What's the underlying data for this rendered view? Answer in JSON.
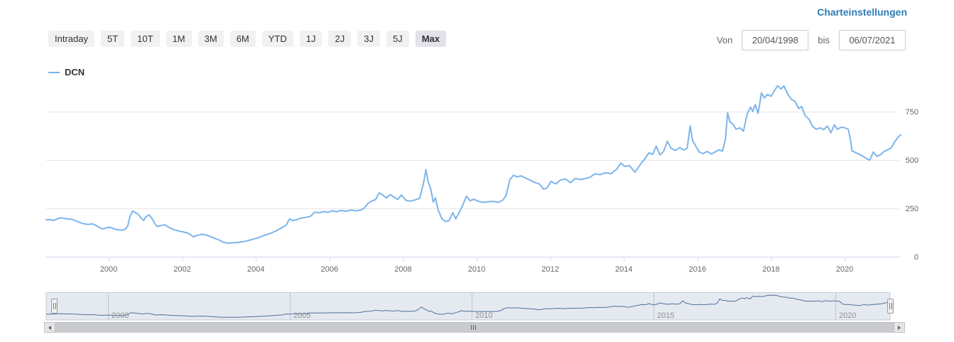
{
  "header": {
    "settings_label": "Charteinstellungen"
  },
  "toolbar": {
    "ranges": [
      {
        "label": "Intraday",
        "selected": false
      },
      {
        "label": "5T",
        "selected": false
      },
      {
        "label": "10T",
        "selected": false
      },
      {
        "label": "1M",
        "selected": false
      },
      {
        "label": "3M",
        "selected": false
      },
      {
        "label": "6M",
        "selected": false
      },
      {
        "label": "YTD",
        "selected": false
      },
      {
        "label": "1J",
        "selected": false
      },
      {
        "label": "2J",
        "selected": false
      },
      {
        "label": "3J",
        "selected": false
      },
      {
        "label": "5J",
        "selected": false
      },
      {
        "label": "Max",
        "selected": true
      }
    ],
    "from_label": "Von",
    "from_value": "20/04/1998",
    "to_label": "bis",
    "to_value": "06/07/2021"
  },
  "legend": {
    "series_label": "DCN"
  },
  "colors": {
    "link": "#2e7eb4",
    "series": "#7cb5ec",
    "navigator_line": "#52709b",
    "navigator_fill": "#e5eaf1",
    "grid": "#e6e6e6",
    "axis_line": "#ccd6eb",
    "tick_label": "#666666",
    "nav_label": "#8f8f8f",
    "nav_grid": "#bcc5d0",
    "nav_border": "#c6ccd3"
  },
  "chart_data": {
    "type": "line",
    "title": "",
    "xlabel": "",
    "ylabel": "",
    "grid": true,
    "legend_position": "top-left",
    "xlim": [
      1998.3,
      2021.55
    ],
    "ylim": [
      0,
      900
    ],
    "x_ticks": [
      2000,
      2002,
      2004,
      2006,
      2008,
      2010,
      2012,
      2014,
      2016,
      2018,
      2020
    ],
    "y_ticks": [
      0,
      250,
      500,
      750
    ],
    "navigator": {
      "x_ticks": [
        2000,
        2005,
        2010,
        2015,
        2020
      ]
    },
    "series": [
      {
        "name": "DCN",
        "color": "#7cb5ec",
        "points": [
          [
            1998.3,
            190
          ],
          [
            1998.4,
            192
          ],
          [
            1998.5,
            187
          ],
          [
            1998.62,
            197
          ],
          [
            1998.72,
            201
          ],
          [
            1998.85,
            196
          ],
          [
            1999.0,
            193
          ],
          [
            1999.1,
            186
          ],
          [
            1999.2,
            178
          ],
          [
            1999.32,
            170
          ],
          [
            1999.45,
            167
          ],
          [
            1999.55,
            170
          ],
          [
            1999.65,
            162
          ],
          [
            1999.75,
            150
          ],
          [
            1999.85,
            143
          ],
          [
            1999.95,
            150
          ],
          [
            2000.05,
            152
          ],
          [
            2000.15,
            143
          ],
          [
            2000.25,
            139
          ],
          [
            2000.35,
            137
          ],
          [
            2000.45,
            142
          ],
          [
            2000.52,
            160
          ],
          [
            2000.58,
            210
          ],
          [
            2000.65,
            236
          ],
          [
            2000.72,
            228
          ],
          [
            2000.8,
            220
          ],
          [
            2000.88,
            200
          ],
          [
            2000.95,
            187
          ],
          [
            2001.02,
            208
          ],
          [
            2001.1,
            216
          ],
          [
            2001.18,
            196
          ],
          [
            2001.25,
            172
          ],
          [
            2001.32,
            156
          ],
          [
            2001.42,
            161
          ],
          [
            2001.52,
            165
          ],
          [
            2001.62,
            153
          ],
          [
            2001.72,
            143
          ],
          [
            2001.82,
            137
          ],
          [
            2001.92,
            132
          ],
          [
            2002.05,
            127
          ],
          [
            2002.18,
            120
          ],
          [
            2002.3,
            103
          ],
          [
            2002.42,
            111
          ],
          [
            2002.55,
            116
          ],
          [
            2002.7,
            109
          ],
          [
            2002.85,
            97
          ],
          [
            2003.0,
            86
          ],
          [
            2003.12,
            74
          ],
          [
            2003.25,
            70
          ],
          [
            2003.4,
            72
          ],
          [
            2003.55,
            74
          ],
          [
            2003.72,
            80
          ],
          [
            2003.88,
            88
          ],
          [
            2004.05,
            97
          ],
          [
            2004.22,
            110
          ],
          [
            2004.4,
            121
          ],
          [
            2004.55,
            134
          ],
          [
            2004.7,
            149
          ],
          [
            2004.82,
            163
          ],
          [
            2004.92,
            196
          ],
          [
            2005.0,
            186
          ],
          [
            2005.1,
            191
          ],
          [
            2005.22,
            199
          ],
          [
            2005.35,
            203
          ],
          [
            2005.48,
            208
          ],
          [
            2005.6,
            231
          ],
          [
            2005.72,
            227
          ],
          [
            2005.85,
            234
          ],
          [
            2005.95,
            229
          ],
          [
            2006.08,
            237
          ],
          [
            2006.2,
            233
          ],
          [
            2006.32,
            239
          ],
          [
            2006.45,
            235
          ],
          [
            2006.58,
            241
          ],
          [
            2006.72,
            237
          ],
          [
            2006.85,
            241
          ],
          [
            2006.95,
            252
          ],
          [
            2007.05,
            277
          ],
          [
            2007.15,
            288
          ],
          [
            2007.25,
            295
          ],
          [
            2007.35,
            330
          ],
          [
            2007.45,
            318
          ],
          [
            2007.55,
            304
          ],
          [
            2007.65,
            321
          ],
          [
            2007.75,
            309
          ],
          [
            2007.85,
            296
          ],
          [
            2007.95,
            319
          ],
          [
            2008.08,
            291
          ],
          [
            2008.2,
            287
          ],
          [
            2008.32,
            293
          ],
          [
            2008.45,
            302
          ],
          [
            2008.55,
            375
          ],
          [
            2008.62,
            450
          ],
          [
            2008.68,
            388
          ],
          [
            2008.75,
            352
          ],
          [
            2008.82,
            282
          ],
          [
            2008.88,
            304
          ],
          [
            2008.95,
            243
          ],
          [
            2009.05,
            197
          ],
          [
            2009.15,
            182
          ],
          [
            2009.25,
            186
          ],
          [
            2009.35,
            228
          ],
          [
            2009.43,
            196
          ],
          [
            2009.52,
            226
          ],
          [
            2009.62,
            266
          ],
          [
            2009.72,
            313
          ],
          [
            2009.82,
            289
          ],
          [
            2009.92,
            297
          ],
          [
            2010.05,
            286
          ],
          [
            2010.18,
            281
          ],
          [
            2010.32,
            284
          ],
          [
            2010.45,
            286
          ],
          [
            2010.58,
            281
          ],
          [
            2010.7,
            291
          ],
          [
            2010.8,
            316
          ],
          [
            2010.9,
            398
          ],
          [
            2011.0,
            421
          ],
          [
            2011.1,
            413
          ],
          [
            2011.2,
            418
          ],
          [
            2011.32,
            408
          ],
          [
            2011.45,
            396
          ],
          [
            2011.58,
            384
          ],
          [
            2011.7,
            376
          ],
          [
            2011.82,
            349
          ],
          [
            2011.92,
            357
          ],
          [
            2012.02,
            389
          ],
          [
            2012.15,
            376
          ],
          [
            2012.28,
            397
          ],
          [
            2012.42,
            401
          ],
          [
            2012.55,
            383
          ],
          [
            2012.68,
            404
          ],
          [
            2012.82,
            399
          ],
          [
            2012.95,
            404
          ],
          [
            2013.08,
            411
          ],
          [
            2013.22,
            429
          ],
          [
            2013.35,
            424
          ],
          [
            2013.5,
            434
          ],
          [
            2013.65,
            429
          ],
          [
            2013.8,
            452
          ],
          [
            2013.92,
            484
          ],
          [
            2014.02,
            467
          ],
          [
            2014.15,
            471
          ],
          [
            2014.3,
            437
          ],
          [
            2014.45,
            478
          ],
          [
            2014.58,
            509
          ],
          [
            2014.68,
            537
          ],
          [
            2014.78,
            529
          ],
          [
            2014.88,
            571
          ],
          [
            2014.98,
            527
          ],
          [
            2015.08,
            544
          ],
          [
            2015.18,
            597
          ],
          [
            2015.28,
            561
          ],
          [
            2015.4,
            549
          ],
          [
            2015.52,
            564
          ],
          [
            2015.62,
            551
          ],
          [
            2015.72,
            561
          ],
          [
            2015.8,
            676
          ],
          [
            2015.87,
            601
          ],
          [
            2015.95,
            572
          ],
          [
            2016.05,
            541
          ],
          [
            2016.15,
            533
          ],
          [
            2016.27,
            544
          ],
          [
            2016.38,
            531
          ],
          [
            2016.48,
            541
          ],
          [
            2016.58,
            553
          ],
          [
            2016.68,
            546
          ],
          [
            2016.76,
            608
          ],
          [
            2016.82,
            745
          ],
          [
            2016.88,
            697
          ],
          [
            2016.95,
            689
          ],
          [
            2017.05,
            659
          ],
          [
            2017.15,
            666
          ],
          [
            2017.25,
            649
          ],
          [
            2017.35,
            737
          ],
          [
            2017.44,
            774
          ],
          [
            2017.5,
            751
          ],
          [
            2017.57,
            786
          ],
          [
            2017.65,
            741
          ],
          [
            2017.74,
            847
          ],
          [
            2017.82,
            821
          ],
          [
            2017.9,
            839
          ],
          [
            2018.0,
            829
          ],
          [
            2018.1,
            861
          ],
          [
            2018.18,
            884
          ],
          [
            2018.27,
            867
          ],
          [
            2018.35,
            883
          ],
          [
            2018.45,
            841
          ],
          [
            2018.55,
            813
          ],
          [
            2018.65,
            804
          ],
          [
            2018.75,
            766
          ],
          [
            2018.83,
            776
          ],
          [
            2018.93,
            729
          ],
          [
            2019.03,
            711
          ],
          [
            2019.13,
            673
          ],
          [
            2019.23,
            659
          ],
          [
            2019.33,
            666
          ],
          [
            2019.43,
            657
          ],
          [
            2019.53,
            675
          ],
          [
            2019.63,
            641
          ],
          [
            2019.72,
            682
          ],
          [
            2019.8,
            659
          ],
          [
            2019.9,
            669
          ],
          [
            2020.0,
            667
          ],
          [
            2020.1,
            658
          ],
          [
            2020.16,
            604
          ],
          [
            2020.2,
            547
          ],
          [
            2020.3,
            538
          ],
          [
            2020.4,
            529
          ],
          [
            2020.5,
            519
          ],
          [
            2020.6,
            507
          ],
          [
            2020.68,
            499
          ],
          [
            2020.78,
            541
          ],
          [
            2020.87,
            519
          ],
          [
            2020.97,
            527
          ],
          [
            2021.07,
            544
          ],
          [
            2021.17,
            553
          ],
          [
            2021.27,
            563
          ],
          [
            2021.37,
            597
          ],
          [
            2021.47,
            622
          ],
          [
            2021.53,
            630
          ]
        ]
      }
    ]
  }
}
